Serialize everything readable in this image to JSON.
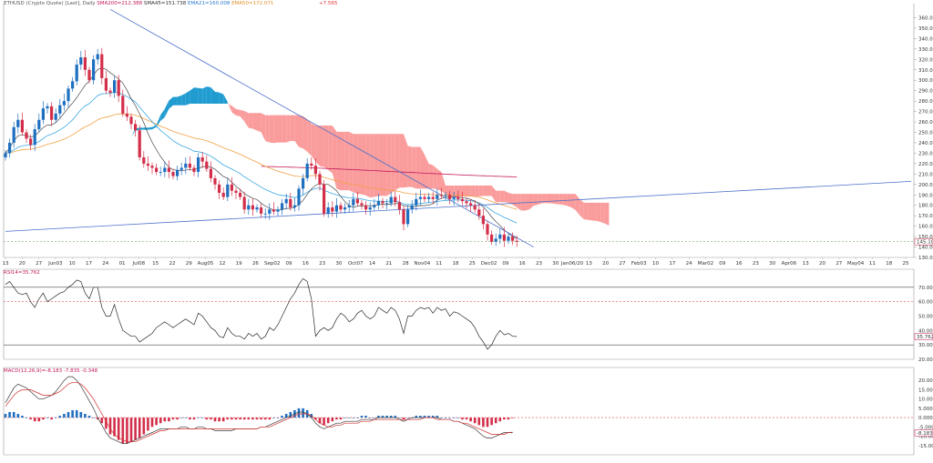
{
  "header": {
    "main": [
      {
        "text": "ETHUSD (Crypto Quote) [Last], Daily",
        "color": "#555555"
      },
      {
        "text": "SMA200=212.388",
        "color": "#c2185b"
      },
      {
        "text": "SMA45=151.738",
        "color": "#333333"
      },
      {
        "text": "EMA21=160.008",
        "color": "#2e7bcf"
      },
      {
        "text": "EMA50=172.071",
        "color": "#e0902a"
      }
    ],
    "tail": {
      "text": "+7.565",
      "color": "#e53935"
    },
    "rsi": "RSI14=35.762",
    "macd": "MACD(12,26,9)=-8.183 -7.835 -0.348"
  },
  "colors": {
    "up": "#1e6fc0",
    "down": "#d32f4a",
    "kumo_bull": "#1597cf",
    "kumo_bear": "#fa9797",
    "sma200": "#c2185b",
    "sma45": "#2b2b2b",
    "ema21": "#3da7e0",
    "ema50": "#f2a041",
    "trendline": "#4a6fc9",
    "rsi_line": "#2a2a2a",
    "macd_line": "#3a3a3a",
    "signal_line": "#d32f2f",
    "level_dash": "#e05050",
    "last_dash": "#7aa870"
  },
  "chart_data": [
    {
      "type": "candlestick",
      "panel": "price",
      "ylim": [
        130,
        370
      ],
      "y_ticks": [
        "360.000",
        "350.000",
        "340.000",
        "330.000",
        "320.000",
        "310.000",
        "300.000",
        "290.000",
        "280.000",
        "270.000",
        "260.000",
        "250.000",
        "240.000",
        "230.000",
        "220.000",
        "210.000",
        "200.000",
        "190.000",
        "180.000",
        "170.000",
        "160.000",
        "150.000",
        "140.000",
        "130.000"
      ],
      "last_price": "145.100",
      "x_ticks": [
        "13",
        "20",
        "27",
        "Jun03",
        "10",
        "17",
        "24",
        "01",
        "Jul08",
        "15",
        "22",
        "29",
        "Aug05",
        "12",
        "19",
        "26",
        "Sep02",
        "09",
        "16",
        "23",
        "30",
        "Oct07",
        "14",
        "21",
        "28",
        "Nov04",
        "11",
        "18",
        "25",
        "Dec02",
        "09",
        "16",
        "23",
        "30",
        "Jan06/20",
        "13",
        "20",
        "27",
        "Feb03",
        "10",
        "17",
        "24",
        "Mar02",
        "09",
        "16",
        "23",
        "30",
        "Apr06",
        "13",
        "20",
        "27",
        "May04",
        "11",
        "18",
        "25"
      ],
      "closes": [
        230,
        240,
        255,
        262,
        250,
        244,
        238,
        253,
        262,
        273,
        275,
        262,
        268,
        276,
        280,
        292,
        299,
        315,
        322,
        310,
        300,
        320,
        325,
        302,
        290,
        288,
        300,
        285,
        268,
        265,
        258,
        252,
        226,
        220,
        218,
        216,
        212,
        212,
        216,
        212,
        208,
        214,
        216,
        220,
        216,
        212,
        226,
        222,
        215,
        206,
        200,
        192,
        188,
        200,
        194,
        192,
        188,
        176,
        180,
        176,
        178,
        172,
        172,
        176,
        174,
        176,
        182,
        186,
        178,
        180,
        196,
        206,
        220,
        218,
        210,
        200,
        172,
        178,
        174,
        180,
        176,
        178,
        180,
        186,
        182,
        180,
        176,
        178,
        180,
        184,
        182,
        182,
        188,
        183,
        176,
        162,
        176,
        180,
        186,
        188,
        186,
        188,
        186,
        190,
        189,
        190,
        186,
        188,
        186,
        184,
        182,
        180,
        176,
        170,
        162,
        152,
        145,
        148,
        152,
        146,
        150,
        146,
        145
      ],
      "annotations": [
        "SMA200",
        "EMA50",
        "EMA21",
        "SMA45",
        "Ichimoku Kumo",
        "Trendlines"
      ]
    },
    {
      "type": "line",
      "panel": "rsi",
      "ylim": [
        20,
        80
      ],
      "y_ticks": [
        "70.000",
        "60.000",
        "50.000",
        "40.000",
        "30.000",
        "20.000"
      ],
      "levels": [
        70,
        60,
        30
      ],
      "last_value": "35.762",
      "values": [
        72,
        74,
        70,
        66,
        65,
        66,
        60,
        56,
        62,
        66,
        60,
        62,
        64,
        66,
        67,
        70,
        72,
        75,
        74,
        66,
        62,
        70,
        70,
        56,
        50,
        50,
        58,
        48,
        40,
        38,
        36,
        36,
        32,
        34,
        36,
        38,
        42,
        44,
        46,
        44,
        42,
        44,
        46,
        48,
        46,
        44,
        52,
        50,
        46,
        42,
        40,
        36,
        35,
        42,
        38,
        36,
        36,
        34,
        38,
        36,
        38,
        34,
        36,
        42,
        40,
        44,
        50,
        56,
        62,
        66,
        72,
        76,
        74,
        62,
        36,
        40,
        42,
        40,
        42,
        48,
        52,
        50,
        46,
        48,
        52,
        54,
        50,
        48,
        50,
        56,
        54,
        52,
        56,
        54,
        48,
        38,
        50,
        50,
        54,
        56,
        55,
        56,
        52,
        56,
        54,
        55,
        50,
        53,
        52,
        50,
        48,
        46,
        42,
        36,
        32,
        27,
        30,
        36,
        40,
        37,
        38,
        36,
        35.762
      ]
    },
    {
      "type": "bar+line",
      "panel": "macd",
      "ylim": [
        -20,
        25
      ],
      "y_ticks": [
        "20.000",
        "15.000",
        "10.000",
        "5.000",
        "0.000",
        "-5.000",
        "-10.000",
        "-15.000"
      ],
      "last_value": "-8.183",
      "histogram": [
        2,
        3,
        3,
        2,
        1,
        0,
        -1,
        -2,
        -2,
        -1,
        0,
        -1,
        0,
        1,
        2,
        3,
        4,
        4,
        3,
        2,
        1,
        0,
        -1,
        -3,
        -6,
        -9,
        -10,
        -12,
        -14,
        -14,
        -13,
        -12,
        -11,
        -9,
        -7,
        -5,
        -4,
        -3,
        -2,
        -2,
        -1,
        -1,
        0,
        0,
        -1,
        -1,
        0,
        0,
        -1,
        -1,
        -2,
        -2,
        -2,
        -1,
        -1,
        -1,
        -1,
        -1,
        -1,
        -1,
        -1,
        -1,
        -1,
        -1,
        0,
        0,
        1,
        2,
        3,
        4,
        5,
        5,
        4,
        2,
        -1,
        -3,
        -4,
        -3,
        -2,
        -1,
        -1,
        0,
        0,
        0,
        0,
        1,
        1,
        0,
        0,
        1,
        1,
        1,
        1,
        1,
        0,
        -1,
        0,
        0,
        1,
        1,
        1,
        1,
        1,
        1,
        0,
        0,
        0,
        0,
        0,
        -1,
        -1,
        -2,
        -3,
        -4,
        -5,
        -5,
        -4,
        -3,
        -2,
        -1,
        -1,
        -0.348
      ],
      "macd": [
        8,
        12,
        16,
        18,
        17,
        16,
        14,
        12,
        10,
        10,
        11,
        12,
        14,
        17,
        20,
        22,
        22,
        20,
        17,
        13,
        9,
        5,
        0,
        -4,
        -8,
        -11,
        -12,
        -13,
        -14,
        -14,
        -13,
        -12,
        -11,
        -10,
        -9,
        -8,
        -7,
        -6,
        -6,
        -6,
        -6,
        -6,
        -5,
        -5,
        -6,
        -6,
        -5,
        -5,
        -6,
        -6,
        -7,
        -7,
        -7,
        -7,
        -7,
        -6,
        -6,
        -6,
        -6,
        -6,
        -6,
        -5,
        -5,
        -4,
        -3,
        -2,
        -1,
        0,
        1,
        2,
        3,
        3,
        2,
        0,
        -3,
        -5,
        -6,
        -5,
        -4,
        -3,
        -3,
        -2,
        -2,
        -2,
        -2,
        -1,
        -1,
        -1,
        -1,
        0,
        0,
        0,
        0,
        0,
        -1,
        -2,
        -1,
        0,
        0,
        0,
        0,
        0,
        0,
        0,
        -1,
        -1,
        -1,
        -2,
        -2,
        -3,
        -4,
        -5,
        -6,
        -8,
        -10,
        -11,
        -11,
        -10,
        -9,
        -8,
        -8,
        -8.183
      ],
      "signal": [
        6,
        9,
        12,
        14,
        15,
        15,
        15,
        14,
        13,
        12,
        12,
        12,
        13,
        14,
        16,
        18,
        19,
        19,
        18,
        16,
        13,
        10,
        6,
        2,
        -2,
        -6,
        -9,
        -11,
        -12,
        -13,
        -13,
        -13,
        -12,
        -11,
        -10,
        -9,
        -8,
        -7,
        -7,
        -6,
        -6,
        -6,
        -6,
        -6,
        -6,
        -6,
        -6,
        -6,
        -6,
        -6,
        -6,
        -6,
        -6,
        -6,
        -6,
        -6,
        -6,
        -6,
        -6,
        -6,
        -6,
        -5,
        -5,
        -5,
        -4,
        -3,
        -2,
        -1,
        0,
        1,
        2,
        2,
        2,
        1,
        -1,
        -3,
        -4,
        -5,
        -5,
        -4,
        -4,
        -3,
        -3,
        -3,
        -3,
        -2,
        -2,
        -2,
        -1,
        -1,
        -1,
        -1,
        -1,
        -1,
        -1,
        -1,
        -1,
        -1,
        -1,
        -1,
        0,
        0,
        0,
        -1,
        -1,
        -1,
        -1,
        -2,
        -2,
        -3,
        -3,
        -4,
        -5,
        -6,
        -7,
        -8,
        -9,
        -9,
        -9,
        -9,
        -8,
        -7.835
      ]
    }
  ]
}
